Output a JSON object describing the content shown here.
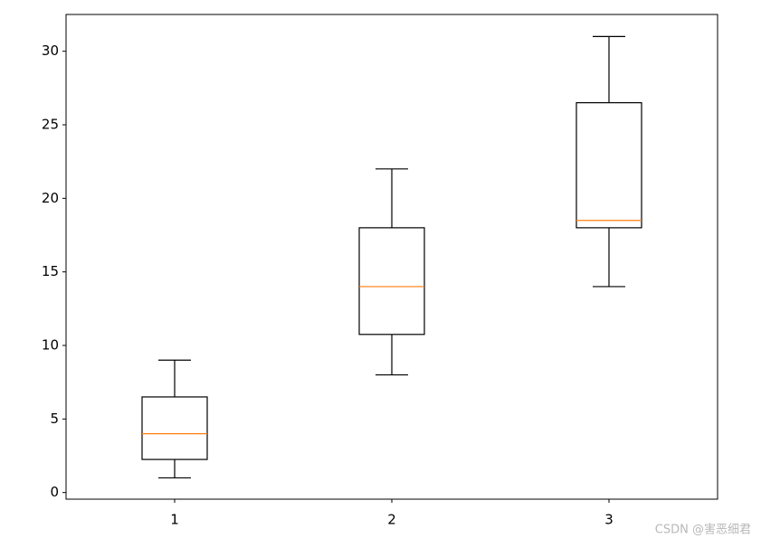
{
  "chart_data": {
    "type": "box",
    "categories": [
      "1",
      "2",
      "3"
    ],
    "boxes": [
      {
        "whislo": 1,
        "q1": 2.25,
        "med": 4,
        "q3": 6.5,
        "whishi": 9
      },
      {
        "whislo": 8,
        "q1": 10.75,
        "med": 14,
        "q3": 18,
        "whishi": 22
      },
      {
        "whislo": 14,
        "q1": 18,
        "med": 18.5,
        "q3": 26.5,
        "whishi": 31
      }
    ],
    "box_color": "#000000",
    "median_color": "#ff7f0e",
    "xlim": [
      0.5,
      3.5
    ],
    "ylim": [
      -0.45,
      32.5
    ],
    "yticks": [
      0,
      5,
      10,
      15,
      20,
      25,
      30
    ]
  },
  "watermark": "CSDN @害恶细君"
}
